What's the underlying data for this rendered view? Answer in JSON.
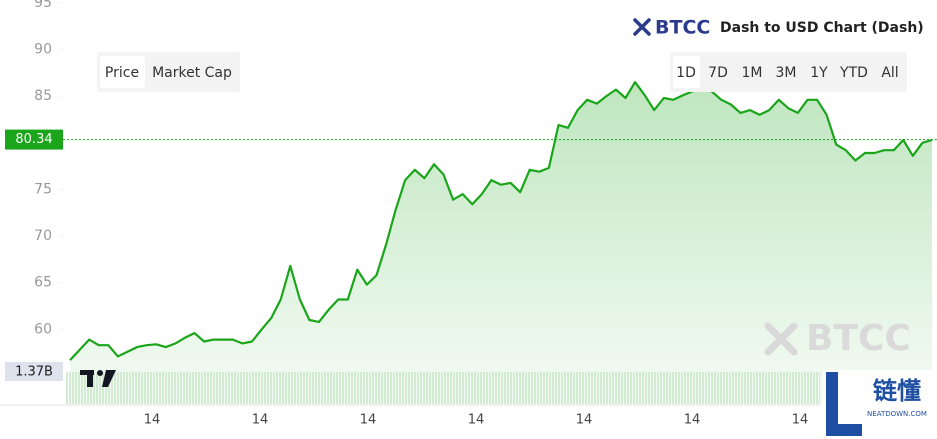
{
  "chart_data": {
    "type": "line",
    "title": "Dash to USD Chart (Dash)",
    "values": [
      56.7,
      57.8,
      58.9,
      58.3,
      58.3,
      57.1,
      57.6,
      58.1,
      58.3,
      58.4,
      58.1,
      58.5,
      59.1,
      59.6,
      58.7,
      58.9,
      58.9,
      58.9,
      58.5,
      58.7,
      60.0,
      61.2,
      63.2,
      66.8,
      63.2,
      61.0,
      60.8,
      62.1,
      63.2,
      63.2,
      66.4,
      64.8,
      65.8,
      69.1,
      72.8,
      76.0,
      77.1,
      76.2,
      77.7,
      76.6,
      73.9,
      74.5,
      73.4,
      74.5,
      76.0,
      75.5,
      75.7,
      74.7,
      77.1,
      76.9,
      77.3,
      81.9,
      81.6,
      83.5,
      84.6,
      84.2,
      85.0,
      85.7,
      84.8,
      86.5,
      85.1,
      83.5,
      84.8,
      84.6,
      85.1,
      85.5,
      85.9,
      85.5,
      84.6,
      84.1,
      83.2,
      83.5,
      83.0,
      83.5,
      84.6,
      83.7,
      83.2,
      84.6,
      84.6,
      83.0,
      79.8,
      79.2,
      78.1,
      78.9,
      78.9,
      79.2,
      79.2,
      80.3,
      78.6,
      80.0,
      80.3
    ],
    "color": "#1aa51a",
    "ylim": [
      52,
      95.3
    ],
    "yticks": [
      60,
      65,
      70,
      75,
      80,
      85,
      90,
      95
    ],
    "xtick_labels": [
      "14",
      "14",
      "14",
      "14",
      "14",
      "14",
      "14"
    ],
    "last_price": 80.34,
    "volume_label": "1.37B"
  },
  "ui": {
    "brand": "BTCC",
    "tabs": [
      "Price",
      "Market Cap"
    ],
    "ranges": [
      "1D",
      "7D",
      "1M",
      "3M",
      "1Y",
      "YTD",
      "All"
    ],
    "watermark": "BTCC",
    "corner_logo": "链懂",
    "corner_site": "NEATDOWN.COM"
  }
}
